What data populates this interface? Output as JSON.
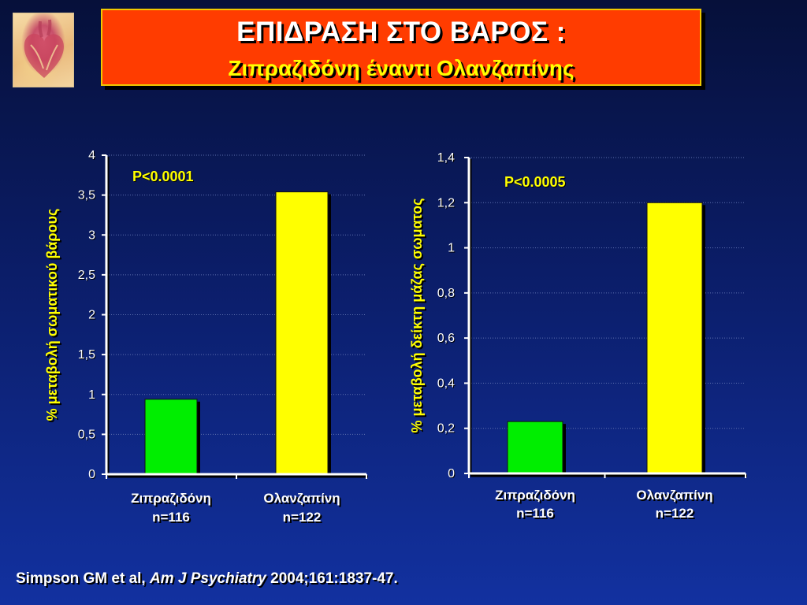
{
  "title": {
    "line1": "ΕΠΙΔΡΑΣΗ ΣΤΟ ΒΑΡΟΣ :",
    "line2": "Ζιπραζιδόνη έναντι Ολανζαπίνης"
  },
  "colors": {
    "green": "#00ee00",
    "yellow": "#ffff00",
    "title_bg": "#ff3c00",
    "title_border": "#f0c800"
  },
  "chart_data": [
    {
      "type": "bar",
      "ylabel": "% μεταβολή σωματικού βάρους",
      "annotation": "P<0.0001",
      "categories": [
        {
          "label": "Ζιπραζιδόνη",
          "n": "n=116"
        },
        {
          "label": "Ολανζαπίνη",
          "n": "n=122"
        }
      ],
      "values": [
        0.94,
        3.54
      ],
      "bar_colors": [
        "#00ee00",
        "#ffff00"
      ],
      "ylim": [
        0,
        4
      ],
      "yticks": [
        "0",
        "0,5",
        "1",
        "1,5",
        "2",
        "2,5",
        "3",
        "3,5",
        "4"
      ],
      "grid": true
    },
    {
      "type": "bar",
      "ylabel": "% μεταβολή δείκτη μάζας σωματος",
      "annotation": "P<0.0005",
      "categories": [
        {
          "label": "Ζιπραζιδόνη",
          "n": "n=116"
        },
        {
          "label": "Ολανζαπίνη",
          "n": "n=122"
        }
      ],
      "values": [
        0.23,
        1.2
      ],
      "bar_colors": [
        "#00ee00",
        "#ffff00"
      ],
      "ylim": [
        0,
        1.4
      ],
      "yticks": [
        "0",
        "0,2",
        "0,4",
        "0,6",
        "0,8",
        "1",
        "1,2",
        "1,4"
      ],
      "grid": true
    }
  ],
  "citation": {
    "authors": "Simpson GM et al,",
    "journal": "Am J Psychiatry",
    "ref": "2004;161:1837-47."
  }
}
